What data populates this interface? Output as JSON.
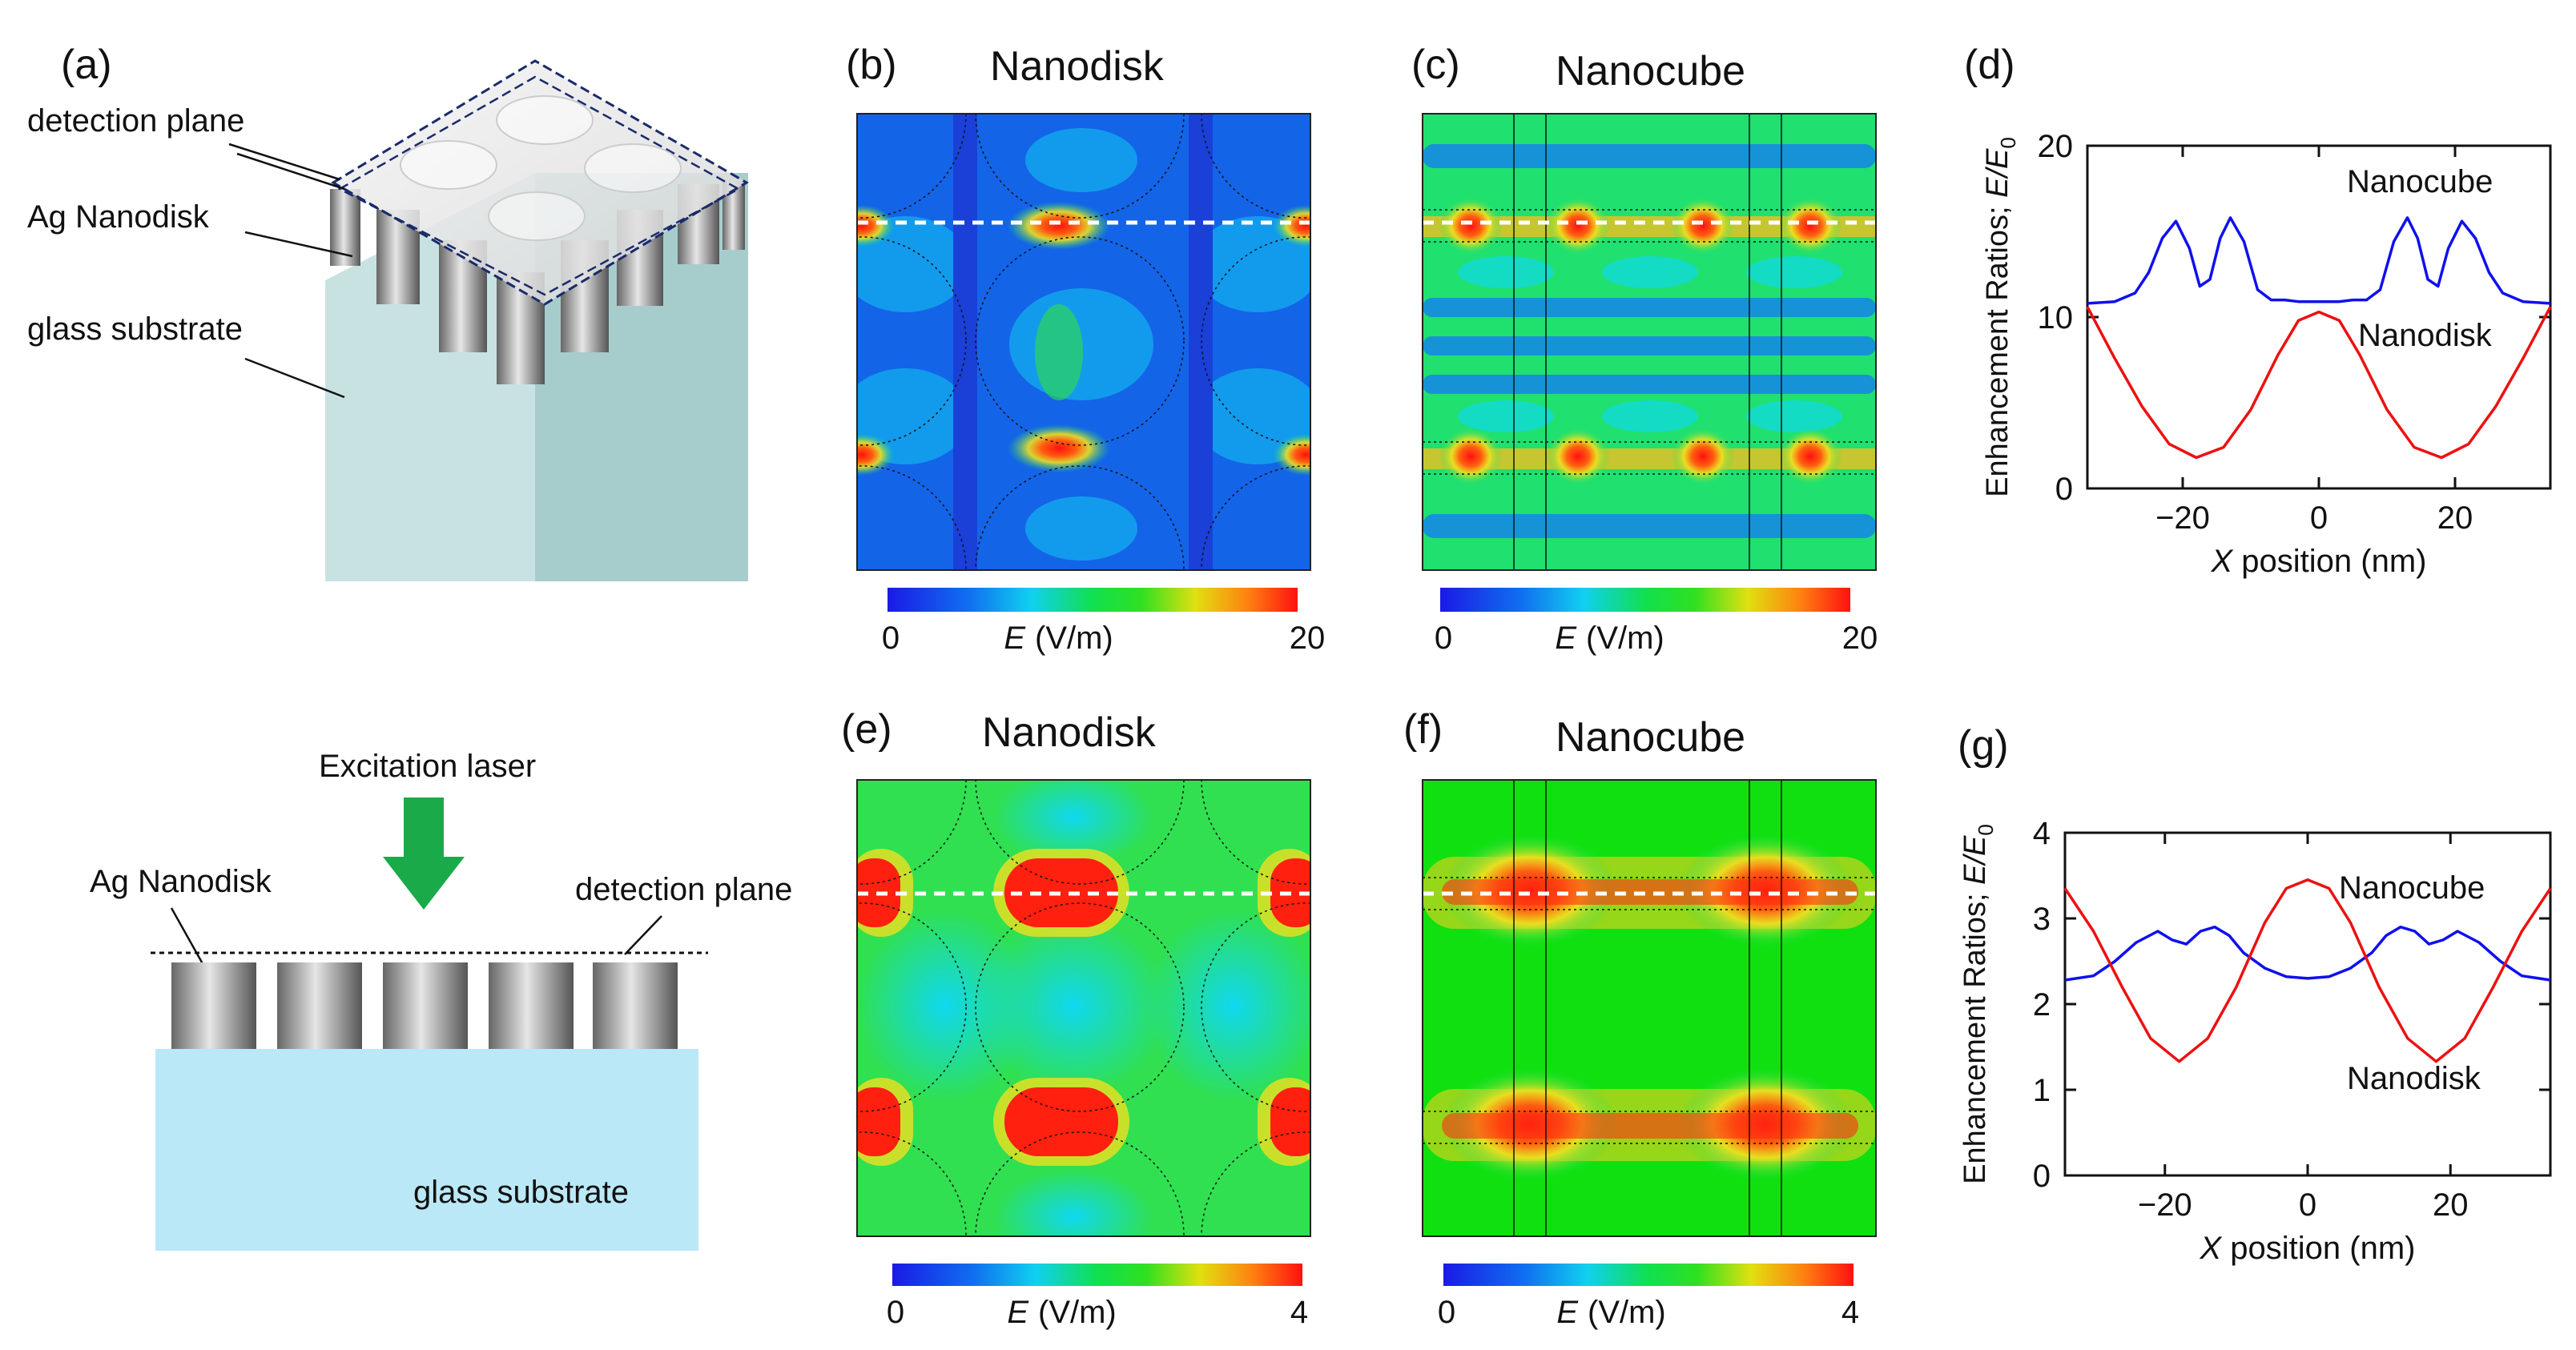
{
  "panel_labels": {
    "a": "(a)",
    "b": "(b)",
    "c": "(c)",
    "d": "(d)",
    "e": "(e)",
    "f": "(f)",
    "g": "(g)"
  },
  "schematic": {
    "detection_plane": "detection plane",
    "ag_nanodisk": "Ag Nanodisk",
    "glass_substrate": "glass substrate",
    "excitation_laser": "Excitation laser"
  },
  "maps": {
    "b": {
      "title": "Nanodisk",
      "cbar_min": "0",
      "cbar_max": "20",
      "cbar_label": "(V/m)",
      "cbar_symbol": "E"
    },
    "c": {
      "title": "Nanocube",
      "cbar_min": "0",
      "cbar_max": "20",
      "cbar_label": "(V/m)",
      "cbar_symbol": "E"
    },
    "e": {
      "title": "Nanodisk",
      "cbar_min": "0",
      "cbar_max": "4",
      "cbar_label": "(V/m)",
      "cbar_symbol": "E"
    },
    "f": {
      "title": "Nanocube",
      "cbar_min": "0",
      "cbar_max": "4",
      "cbar_label": "(V/m)",
      "cbar_symbol": "E"
    }
  },
  "colors": {
    "nanocube": "#1010ee",
    "nanodisk": "#ee1010",
    "heat_low": "#1030e0",
    "heat_mid": "#00e060",
    "heat_high": "#ff1010"
  },
  "chart_data": [
    {
      "id": "d",
      "type": "line",
      "title": "",
      "xlabel_italic": "X",
      "xlabel": "position (nm)",
      "ylabel": "Enhancement Ratios;",
      "ylabel_symbol": "E/E",
      "ylabel_sub": "0",
      "xlim": [
        -34,
        34
      ],
      "ylim": [
        0,
        20
      ],
      "xticks": [
        -20,
        0,
        20
      ],
      "yticks": [
        0,
        10,
        20
      ],
      "xtick_labels": [
        "−20",
        "0",
        "20"
      ],
      "ytick_labels": [
        "0",
        "10",
        "20"
      ],
      "series": [
        {
          "name": "Nanocube",
          "x": [
            -34,
            -30,
            -27,
            -25,
            -23,
            -21,
            -19,
            -17.5,
            -16,
            -14.5,
            -13,
            -11,
            -9,
            -7,
            -5,
            -3,
            0,
            3,
            5,
            7,
            9,
            11,
            13,
            14.5,
            16,
            17.5,
            19,
            21,
            23,
            25,
            27,
            30,
            34
          ],
          "y": [
            10.8,
            10.9,
            11.4,
            12.6,
            14.6,
            15.6,
            14.0,
            11.8,
            12.2,
            14.6,
            15.8,
            14.4,
            11.6,
            11.0,
            11.0,
            10.9,
            10.9,
            10.9,
            11.0,
            11.0,
            11.6,
            14.4,
            15.8,
            14.6,
            12.2,
            11.8,
            14.0,
            15.6,
            14.6,
            12.6,
            11.4,
            10.9,
            10.8
          ]
        },
        {
          "name": "Nanodisk",
          "x": [
            -34,
            -30,
            -26,
            -22,
            -18,
            -14,
            -10,
            -6,
            -3,
            0,
            3,
            6,
            10,
            14,
            18,
            22,
            26,
            30,
            34
          ],
          "y": [
            10.6,
            7.6,
            4.8,
            2.6,
            1.8,
            2.4,
            4.6,
            7.8,
            9.8,
            10.3,
            9.8,
            7.8,
            4.6,
            2.4,
            1.8,
            2.6,
            4.8,
            7.6,
            10.6
          ]
        }
      ]
    },
    {
      "id": "g",
      "type": "line",
      "title": "",
      "xlabel_italic": "X",
      "xlabel": "position (nm)",
      "ylabel": "Enhancement Ratios;",
      "ylabel_symbol": "E/E",
      "ylabel_sub": "0",
      "xlim": [
        -34,
        34
      ],
      "ylim": [
        0,
        4
      ],
      "xticks": [
        -20,
        0,
        20
      ],
      "yticks": [
        0,
        1,
        2,
        3,
        4
      ],
      "xtick_labels": [
        "−20",
        "0",
        "20"
      ],
      "ytick_labels": [
        "0",
        "1",
        "2",
        "3",
        "4"
      ],
      "series": [
        {
          "name": "Nanocube",
          "x": [
            -34,
            -30,
            -27,
            -24,
            -21,
            -19,
            -17,
            -15,
            -13,
            -11,
            -9,
            -6,
            -3,
            0,
            3,
            6,
            9,
            11,
            13,
            15,
            17,
            19,
            21,
            24,
            27,
            30,
            34
          ],
          "y": [
            2.28,
            2.33,
            2.5,
            2.72,
            2.85,
            2.75,
            2.7,
            2.85,
            2.9,
            2.8,
            2.6,
            2.42,
            2.32,
            2.3,
            2.32,
            2.42,
            2.6,
            2.8,
            2.9,
            2.85,
            2.7,
            2.75,
            2.85,
            2.72,
            2.5,
            2.33,
            2.28
          ]
        },
        {
          "name": "Nanodisk",
          "x": [
            -34,
            -30,
            -26,
            -22,
            -18,
            -14,
            -10,
            -6,
            -3,
            0,
            3,
            6,
            10,
            14,
            18,
            22,
            26,
            30,
            34
          ],
          "y": [
            3.35,
            2.85,
            2.2,
            1.6,
            1.33,
            1.6,
            2.2,
            2.95,
            3.35,
            3.45,
            3.35,
            2.95,
            2.2,
            1.6,
            1.33,
            1.6,
            2.2,
            2.85,
            3.35
          ]
        }
      ]
    }
  ]
}
